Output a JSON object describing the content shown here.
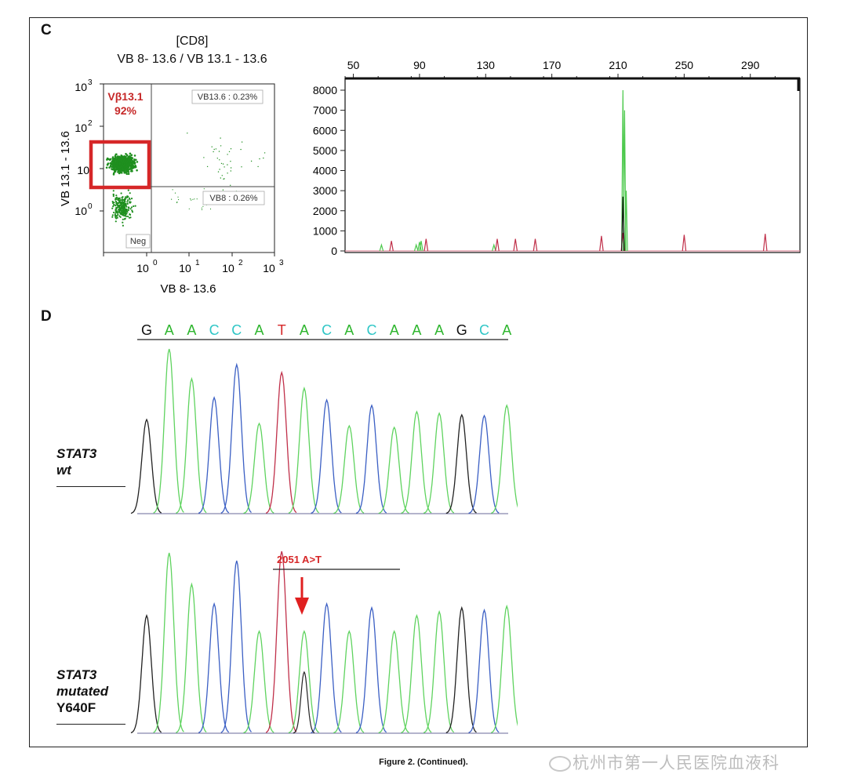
{
  "panel_c": {
    "letter": "C",
    "flow": {
      "title_line1": "[CD8]",
      "title_line2": "VB 8- 13.6 / VB 13.1 - 13.6",
      "ylabel": "VB 13.1 - 13.6",
      "xlabel": "VB 8- 13.6",
      "gate_label_line1": "Vβ13.1",
      "gate_label_line2": "92%",
      "q_top_right": "VB13.6 : 0.23%",
      "q_bottom_right": "VB8 : 0.26%",
      "q_bottom_left": "Neg",
      "x_ticks": [
        "10",
        "10",
        "10",
        "10"
      ],
      "x_exps": [
        "0",
        "1",
        "2",
        "3"
      ],
      "y_ticks": [
        "10",
        "10",
        "10",
        "10"
      ],
      "y_exps": [
        "3",
        "2",
        "",
        "0"
      ],
      "accent": "#d62728",
      "dot_color": "#1f8f1f"
    },
    "fragment_scan": {
      "x_ticks": [
        "50",
        "90",
        "130",
        "170",
        "210",
        "250",
        "290"
      ],
      "y_ticks": [
        "8000",
        "7000",
        "6000",
        "5000",
        "4000",
        "3000",
        "2000",
        "1000",
        "0"
      ]
    }
  },
  "panel_d": {
    "letter": "D",
    "sequence": [
      "G",
      "A",
      "A",
      "C",
      "C",
      "A",
      "T",
      "A",
      "C",
      "A",
      "C",
      "A",
      "A",
      "A",
      "G",
      "C",
      "A"
    ],
    "base_colors": {
      "G": "#111111",
      "A": "#2db52d",
      "C": "#2fc6c6",
      "T": "#d62728"
    },
    "trace_colors": {
      "G": "#222222",
      "A": "#5fd35f",
      "C": "#3b5fc4",
      "T": "#c0304a"
    },
    "wt_label_line1": "STAT3",
    "wt_label_line2": "wt",
    "mut_label_line1": "STAT3",
    "mut_label_line2": "mutated",
    "mut_label_line3": "Y640F",
    "mutation_annotation": "2051 A>T",
    "arrow_color": "#e02020"
  },
  "caption": "Figure 2. (Continued).",
  "watermark": "杭州市第一人民医院血液科",
  "chart_data": [
    {
      "type": "scatter",
      "title": "[CD8] VB 8- 13.6 / VB 13.1 - 13.6",
      "xlabel": "VB 8- 13.6",
      "ylabel": "VB 13.1 - 13.6",
      "x_scale": "log",
      "y_scale": "log",
      "xlim": [
        0.1,
        1000
      ],
      "ylim": [
        0.1,
        1000
      ],
      "quadrants": [
        {
          "name": "Vβ13.1",
          "percent": 92
        },
        {
          "name": "VB13.6",
          "percent": 0.23
        },
        {
          "name": "VB8",
          "percent": 0.26
        },
        {
          "name": "Neg"
        }
      ]
    },
    {
      "type": "line",
      "xlim": [
        45,
        320
      ],
      "ylim": [
        0,
        8000
      ],
      "x_ticks": [
        50,
        90,
        130,
        170,
        210,
        250,
        290
      ],
      "y_ticks": [
        0,
        1000,
        2000,
        3000,
        4000,
        5000,
        6000,
        7000,
        8000
      ],
      "series": [
        {
          "color": "green",
          "peaks": [
            {
              "x": 67,
              "y": 300
            },
            {
              "x": 88,
              "y": 300
            },
            {
              "x": 90,
              "y": 450
            },
            {
              "x": 91,
              "y": 500
            },
            {
              "x": 135,
              "y": 300
            },
            {
              "x": 213,
              "y": 8000
            },
            {
              "x": 214,
              "y": 7000
            },
            {
              "x": 215,
              "y": 3000
            }
          ]
        },
        {
          "color": "red",
          "peaks": [
            {
              "x": 73,
              "y": 500
            },
            {
              "x": 94,
              "y": 600
            },
            {
              "x": 137,
              "y": 600
            },
            {
              "x": 148,
              "y": 600
            },
            {
              "x": 160,
              "y": 600
            },
            {
              "x": 200,
              "y": 750
            },
            {
              "x": 213,
              "y": 900
            },
            {
              "x": 250,
              "y": 800
            },
            {
              "x": 299,
              "y": 850
            }
          ]
        },
        {
          "color": "black",
          "peaks": [
            {
              "x": 213,
              "y": 2700
            }
          ]
        }
      ]
    }
  ]
}
